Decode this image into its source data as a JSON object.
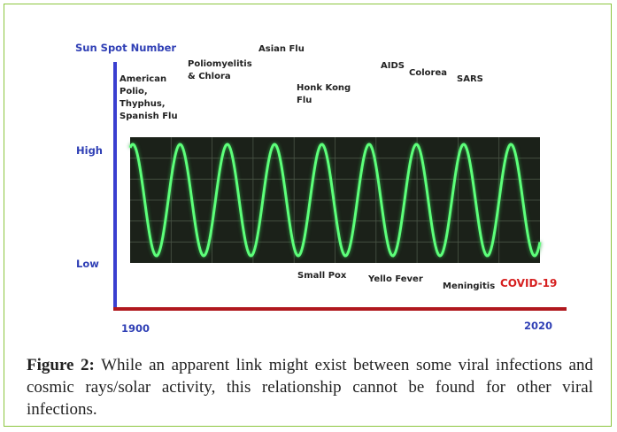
{
  "figure": {
    "axis_title": "Sun Spot Number",
    "level_high": "High",
    "level_low": "Low",
    "year_start": "1900",
    "year_end": "2020",
    "upper_labels": [
      {
        "lines": [
          "American",
          "Polio,",
          "Thyphus,",
          "Spanish Flu"
        ]
      },
      {
        "lines": [
          "Poliomyelitis",
          "& Chlora"
        ]
      },
      {
        "lines": [
          "Asian Flu"
        ]
      },
      {
        "lines": [
          "Honk Kong",
          "Flu"
        ]
      },
      {
        "lines": [
          "AIDS"
        ]
      },
      {
        "lines": [
          "Colorea"
        ]
      },
      {
        "lines": [
          "SARS"
        ]
      }
    ],
    "lower_labels": [
      "Small Pox",
      "Yello Fever",
      "Meningitis"
    ],
    "highlight_label": "COVID-19"
  },
  "caption": {
    "label": "Figure 2:",
    "text": "While an apparent link might exist between some viral infections and cosmic rays/solar activity, this relationship cannot be found for other viral infections."
  }
}
